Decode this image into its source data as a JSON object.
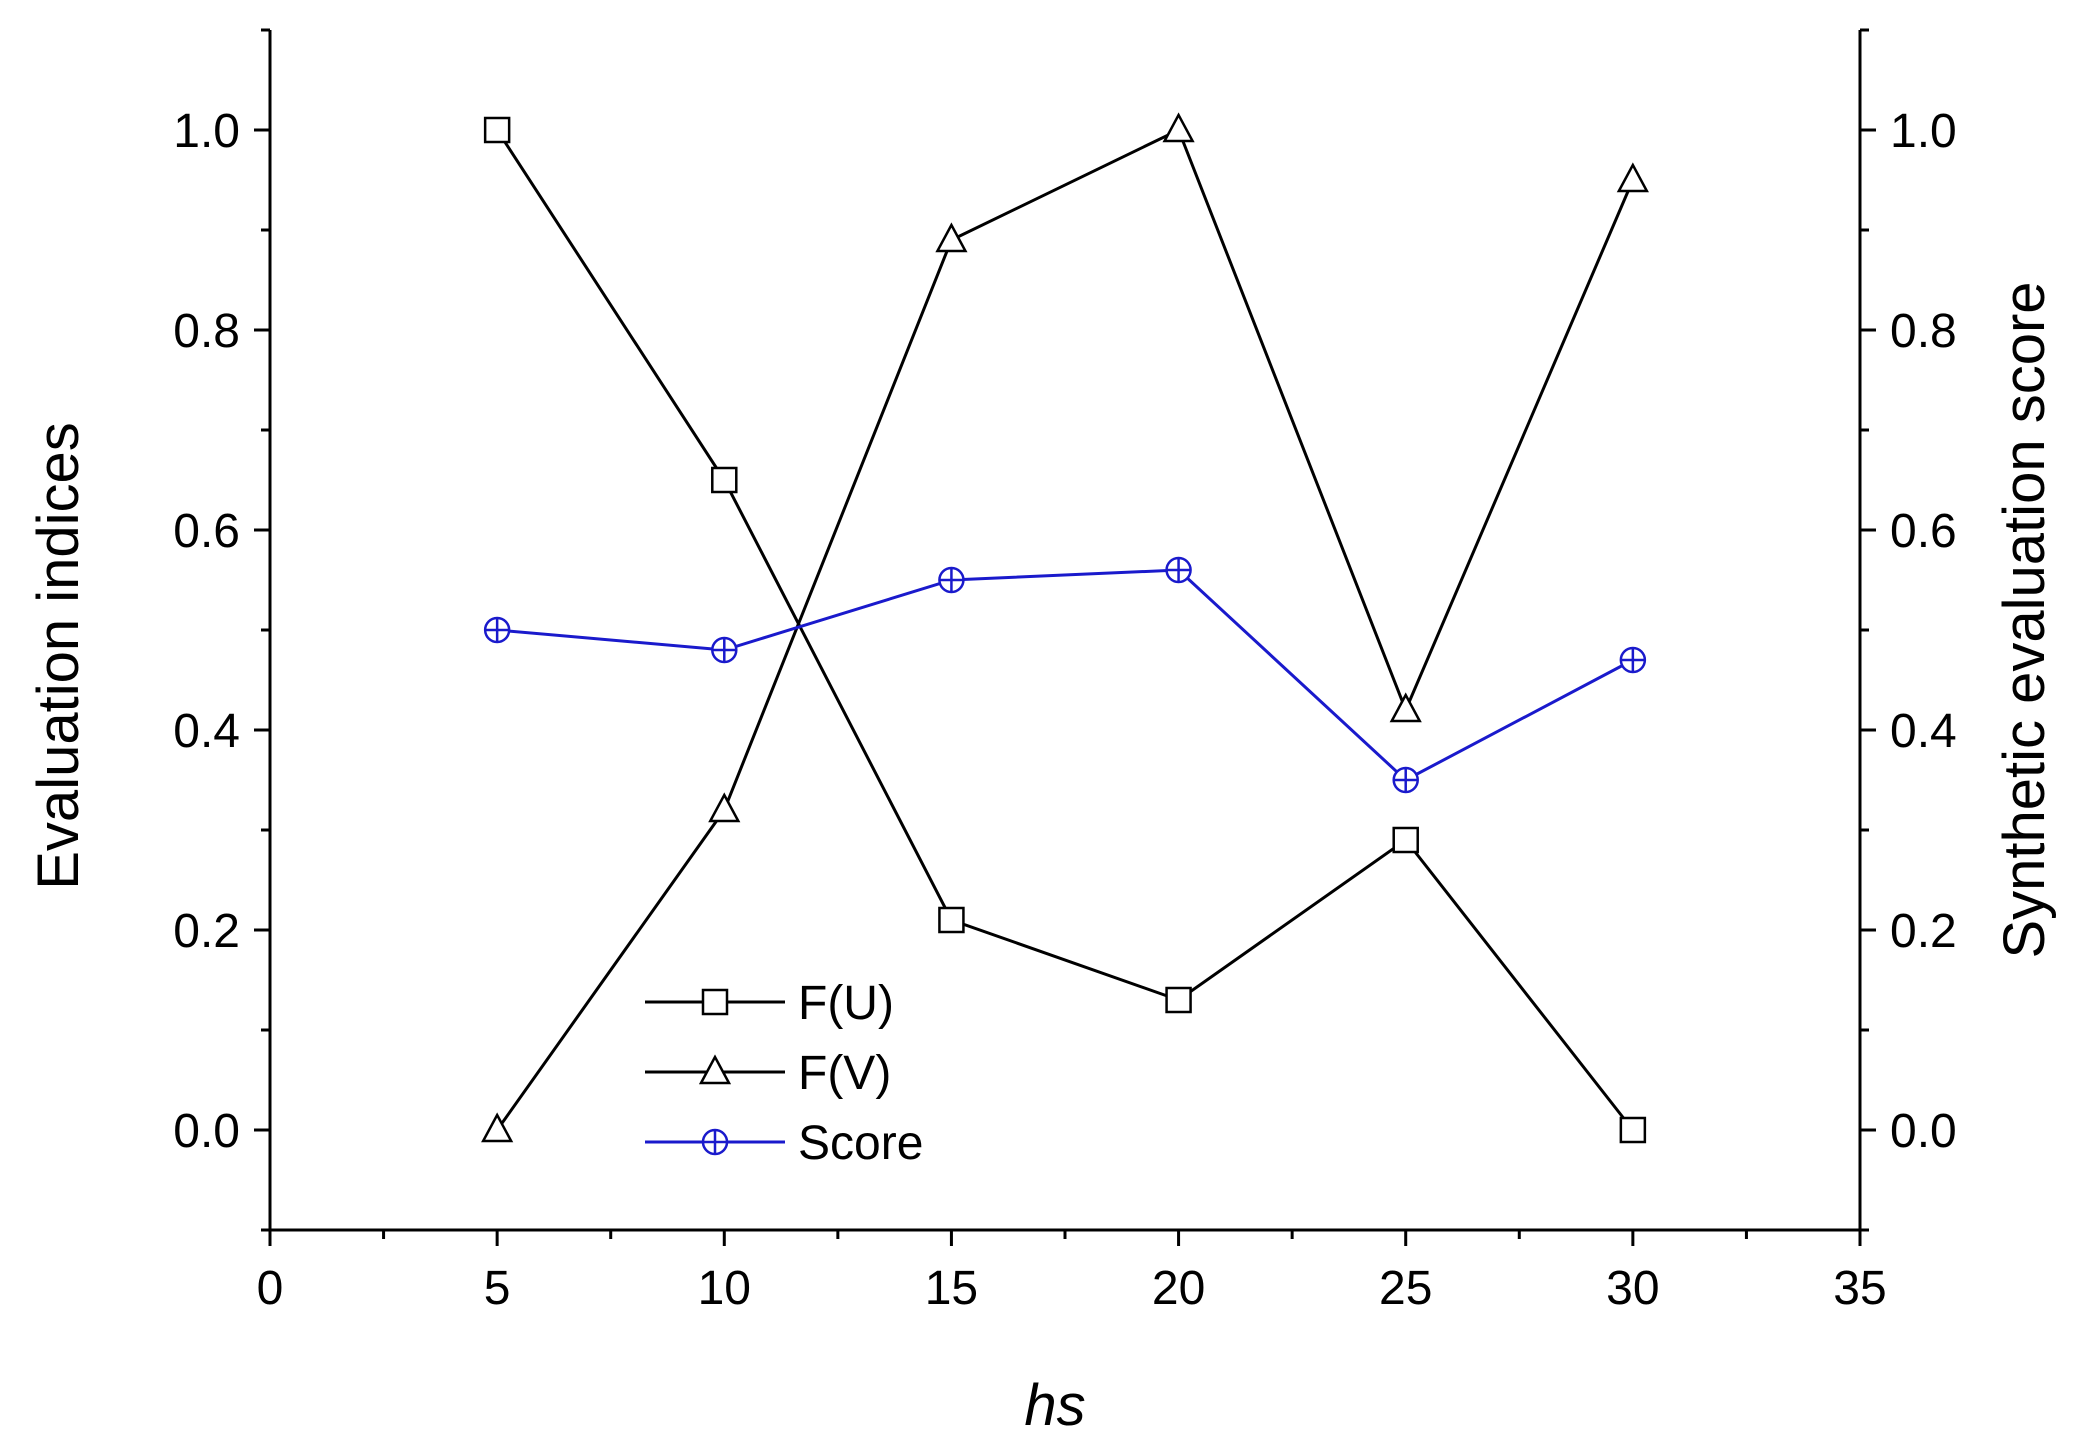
{
  "chart_data": {
    "type": "line",
    "x": [
      5,
      10,
      15,
      20,
      25,
      30
    ],
    "xlabel": "hs",
    "ylabel": "Evaluation indices",
    "y2label": "Synthetic evaluation score",
    "xlim": [
      0,
      35
    ],
    "ylim": [
      -0.1,
      1.1
    ],
    "y2lim": [
      -0.1,
      1.1
    ],
    "xticks": [
      "0",
      "5",
      "10",
      "15",
      "20",
      "25",
      "30",
      "35"
    ],
    "yticks": [
      "0.0",
      "0.2",
      "0.4",
      "0.6",
      "0.8",
      "1.0"
    ],
    "y2ticks": [
      "0.0",
      "0.2",
      "0.4",
      "0.6",
      "0.8",
      "1.0"
    ],
    "grid": false,
    "legend_position": "lower-left",
    "series": [
      {
        "name": "F(U)",
        "values": [
          1.0,
          0.65,
          0.21,
          0.13,
          0.29,
          0.0
        ],
        "marker": "square",
        "color": "#000000",
        "axis": "left"
      },
      {
        "name": "F(V)",
        "values": [
          0.0,
          0.32,
          0.89,
          1.0,
          0.42,
          0.95
        ],
        "marker": "triangle",
        "color": "#000000",
        "axis": "left"
      },
      {
        "name": "Score",
        "values": [
          0.5,
          0.48,
          0.55,
          0.56,
          0.35,
          0.47
        ],
        "marker": "circle-plus",
        "color": "#1a1acc",
        "axis": "right"
      }
    ]
  }
}
